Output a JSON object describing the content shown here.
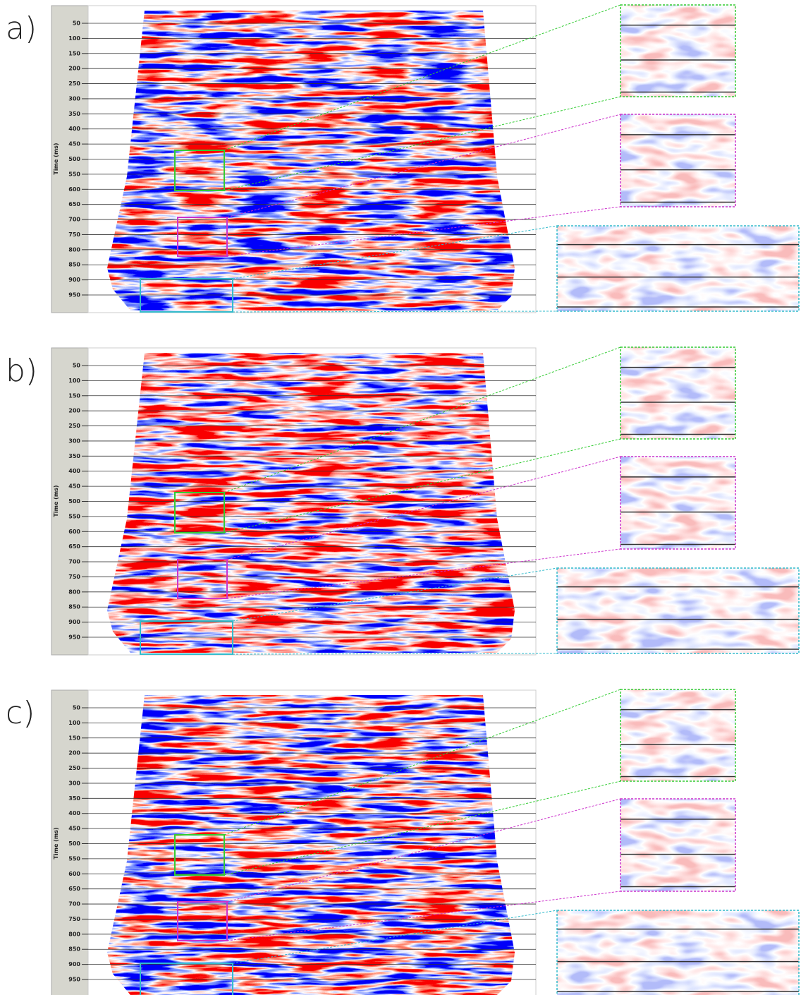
{
  "panels": [
    {
      "label": "a)",
      "axis_label": "Time (ms)",
      "ticks": [
        50,
        100,
        150,
        200,
        250,
        300,
        350,
        400,
        450,
        500,
        550,
        600,
        650,
        700,
        750,
        800,
        850,
        900,
        950
      ]
    },
    {
      "label": "b)",
      "axis_label": "Time (ms)",
      "ticks": [
        50,
        100,
        150,
        200,
        250,
        300,
        350,
        400,
        450,
        500,
        550,
        600,
        650,
        700,
        750,
        800,
        850,
        900,
        950
      ]
    },
    {
      "label": "c)",
      "axis_label": "Time (ms)",
      "ticks": [
        50,
        100,
        150,
        200,
        250,
        300,
        350,
        400,
        450,
        500,
        550,
        600,
        650,
        700,
        750,
        800,
        850,
        900,
        950
      ]
    }
  ]
}
